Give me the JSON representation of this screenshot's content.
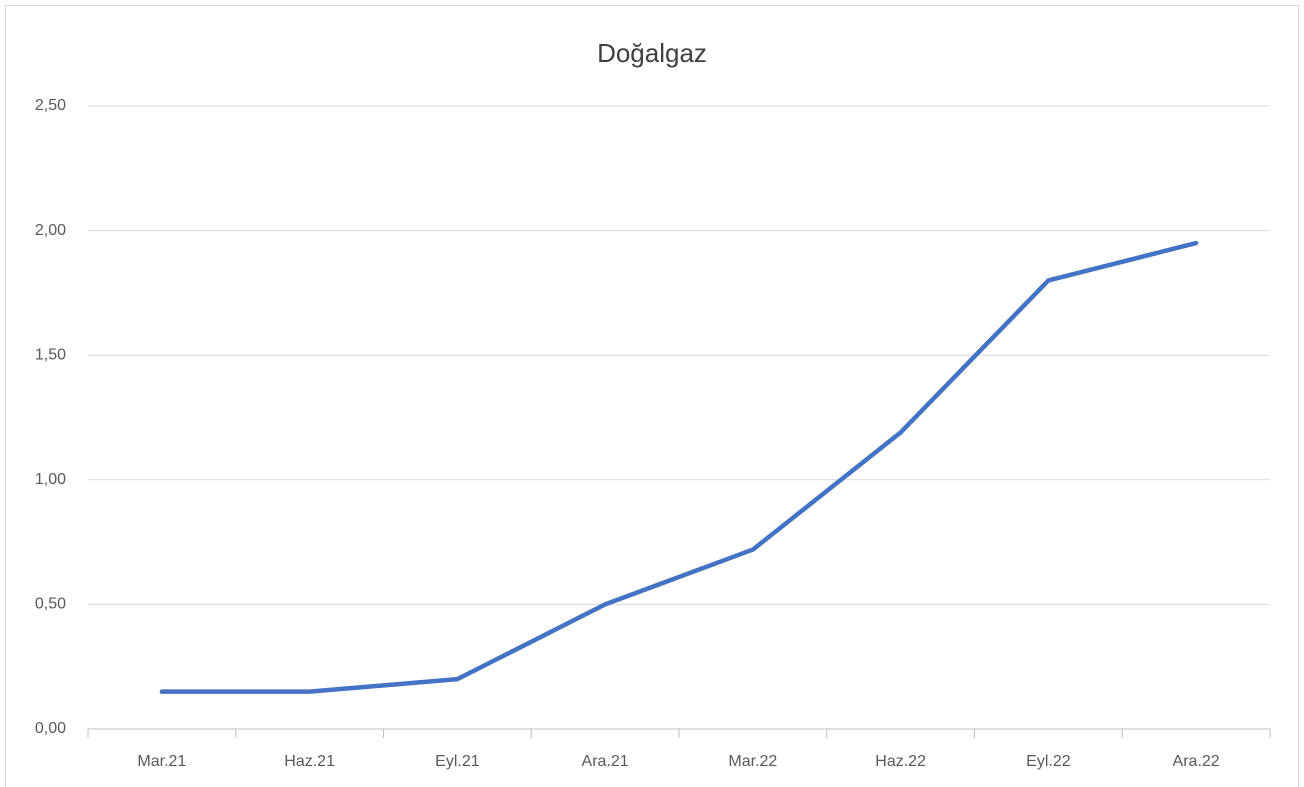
{
  "chart_data": {
    "type": "line",
    "title": "Doğalgaz",
    "categories": [
      "Mar.21",
      "Haz.21",
      "Eyl.21",
      "Ara.21",
      "Mar.22",
      "Haz.22",
      "Eyl.22",
      "Ara.22"
    ],
    "series": [
      {
        "name": "Doğalgaz",
        "color": "#4472c4",
        "values": [
          0.15,
          0.15,
          0.2,
          0.5,
          0.72,
          1.19,
          1.8,
          1.95
        ]
      }
    ],
    "ylim": [
      0,
      2.5
    ],
    "yticks": [
      {
        "value": 0,
        "label": "0,00"
      },
      {
        "value": 0.5,
        "label": "0,50"
      },
      {
        "value": 1,
        "label": "1,00"
      },
      {
        "value": 1.5,
        "label": "1,50"
      },
      {
        "value": 2,
        "label": "2,00"
      },
      {
        "value": 2.5,
        "label": "2,50"
      }
    ],
    "grid": true
  }
}
